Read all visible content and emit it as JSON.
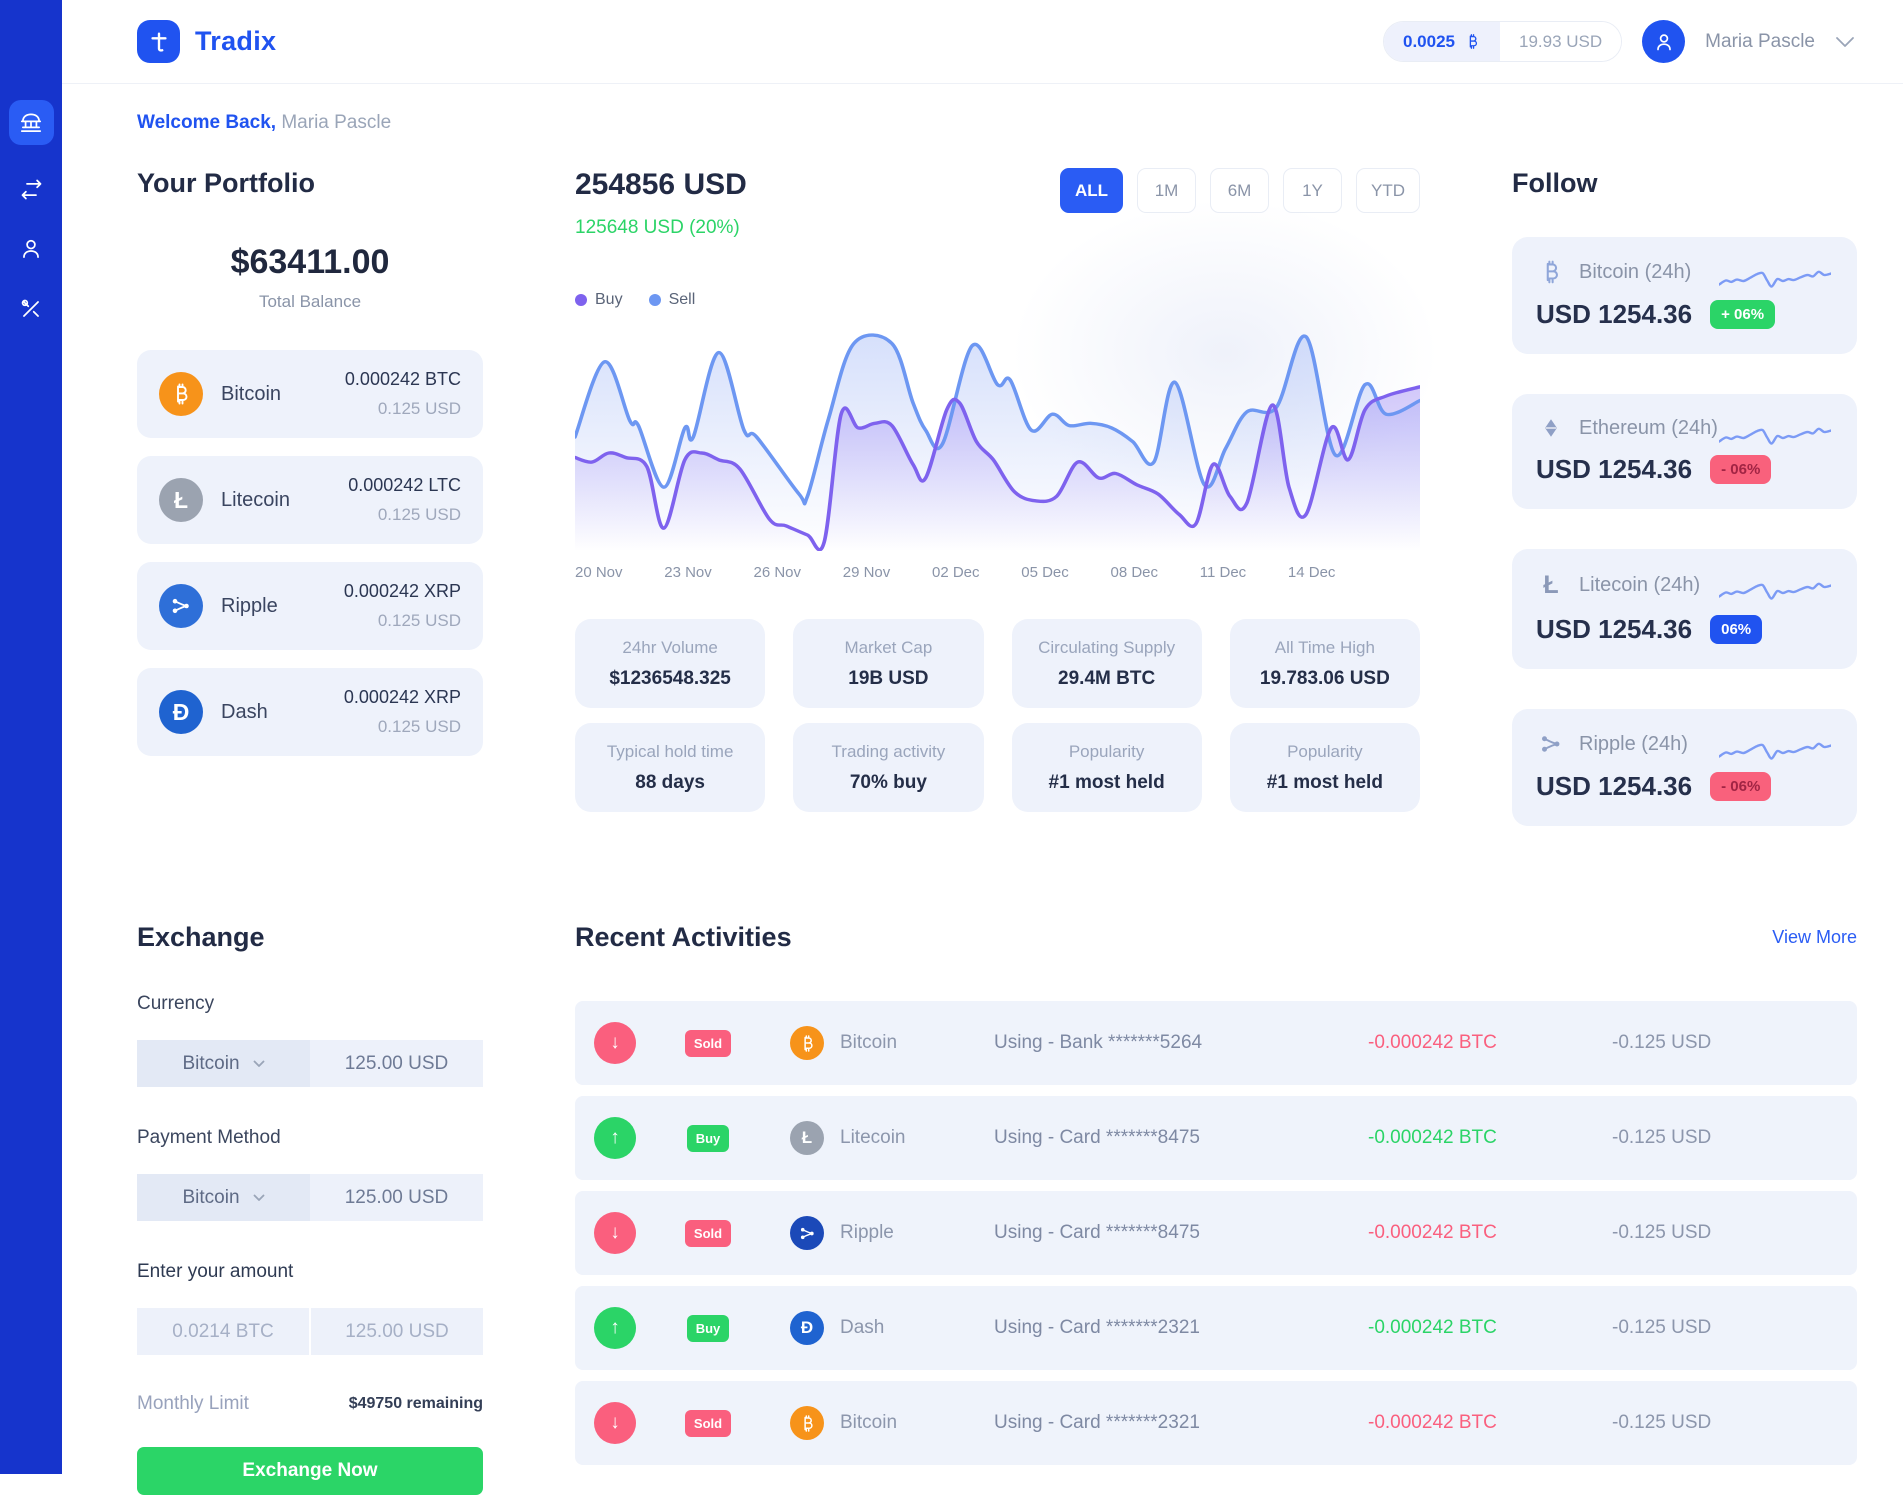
{
  "colors": {
    "brand_blue": "#2053F0",
    "accent_blue": "#2A5CF4",
    "sidebar_blue": "#1634CC",
    "green": "#2BD467",
    "pink": "#FA5F7E",
    "card_bg": "#EEF2FB",
    "line_sell": "#6D97F2",
    "line_buy": "#7E62EE",
    "sparkline": "#7C9BF5",
    "bitcoin": "#F7931A",
    "litecoin": "#9BA3B0",
    "ripple": "#2E6FD8",
    "dash": "#1F63D0"
  },
  "icons": {
    "up_arrow": "↑",
    "down_arrow": "↓",
    "litecoin_glyph": "Ł",
    "dash_glyph": "Đ"
  },
  "header": {
    "brand": "Tradix",
    "rate_crypto": "0.0025",
    "rate_fiat": "19.93 USD",
    "user_name": "Maria Pascle"
  },
  "welcome": {
    "prefix": "Welcome Back,",
    "name": "Maria Pascle"
  },
  "portfolio": {
    "title": "Your Portfolio",
    "total": "$63411.00",
    "total_label": "Total Balance",
    "items": [
      {
        "name": "Bitcoin",
        "amount": "0.000242 BTC",
        "usd": "0.125 USD"
      },
      {
        "name": "Litecoin",
        "amount": "0.000242 LTC",
        "usd": "0.125 USD",
        "glyph": "Ł"
      },
      {
        "name": "Ripple",
        "amount": "0.000242 XRP",
        "usd": "0.125 USD"
      },
      {
        "name": "Dash",
        "amount": "0.000242 XRP",
        "usd": "0.125 USD",
        "glyph": "Đ"
      }
    ]
  },
  "market": {
    "price": "254856 USD",
    "change": "125648 USD (20%)",
    "filters": [
      "ALL",
      "1M",
      "6M",
      "1Y",
      "YTD"
    ],
    "active_filter": "ALL",
    "legend": [
      "Buy",
      "Sell"
    ],
    "stats": [
      {
        "label": "24hr Volume",
        "value": "$1236548.325"
      },
      {
        "label": "Market Cap",
        "value": "19B USD"
      },
      {
        "label": "Circulating Supply",
        "value": "29.4M BTC"
      },
      {
        "label": "All Time High",
        "value": "19.783.06 USD"
      },
      {
        "label": "Typical hold time",
        "value": "88 days"
      },
      {
        "label": "Trading activity",
        "value": "70% buy"
      },
      {
        "label": "Popularity",
        "value": "#1 most held"
      },
      {
        "label": "Popularity",
        "value": "#1 most held"
      }
    ]
  },
  "chart_data": {
    "type": "area",
    "title": "254856 USD",
    "x_labels": [
      "20 Nov",
      "23 Nov",
      "26 Nov",
      "29 Nov",
      "02 Dec",
      "05 Dec",
      "08 Dec",
      "11 Dec",
      "14 Dec"
    ],
    "legend_position": "top-left",
    "grid": false,
    "y_unit": "percent-from-top",
    "series": [
      {
        "name": "Sell",
        "color": "#6D97F2",
        "points": [
          [
            0,
            50
          ],
          [
            3.5,
            17
          ],
          [
            6.5,
            43
          ],
          [
            7.5,
            45
          ],
          [
            10.5,
            72
          ],
          [
            13,
            46
          ],
          [
            14,
            50
          ],
          [
            17,
            13
          ],
          [
            20,
            47
          ],
          [
            21.5,
            50
          ],
          [
            26.5,
            75
          ],
          [
            27.5,
            76
          ],
          [
            30,
            42
          ],
          [
            33,
            9
          ],
          [
            37.5,
            9
          ],
          [
            40,
            35
          ],
          [
            41.5,
            47
          ],
          [
            43.5,
            53
          ],
          [
            47,
            10
          ],
          [
            50,
            27
          ],
          [
            51.5,
            25
          ],
          [
            54,
            47
          ],
          [
            56.5,
            40
          ],
          [
            58.5,
            45
          ],
          [
            61,
            44
          ],
          [
            63.5,
            46
          ],
          [
            66,
            52
          ],
          [
            68.5,
            61
          ],
          [
            71,
            26
          ],
          [
            74.5,
            71
          ],
          [
            77,
            55
          ],
          [
            79.5,
            39
          ],
          [
            83,
            37
          ],
          [
            86.5,
            6
          ],
          [
            90,
            58
          ],
          [
            93.5,
            27
          ],
          [
            96,
            40
          ],
          [
            100,
            34
          ]
        ]
      },
      {
        "name": "Buy",
        "color": "#7E62EE",
        "points": [
          [
            0,
            59
          ],
          [
            2,
            61
          ],
          [
            4,
            57
          ],
          [
            6,
            59
          ],
          [
            8.5,
            63
          ],
          [
            10.5,
            90
          ],
          [
            13,
            60
          ],
          [
            15,
            57
          ],
          [
            17,
            60
          ],
          [
            19.5,
            64
          ],
          [
            23,
            86
          ],
          [
            25,
            89
          ],
          [
            27.5,
            93
          ],
          [
            29.5,
            96
          ],
          [
            31.5,
            40
          ],
          [
            33.5,
            46
          ],
          [
            35.5,
            44
          ],
          [
            37.5,
            45
          ],
          [
            40,
            62
          ],
          [
            41.5,
            68
          ],
          [
            44,
            38
          ],
          [
            45.5,
            35
          ],
          [
            47.5,
            52
          ],
          [
            49.5,
            60
          ],
          [
            52,
            74
          ],
          [
            54.5,
            78
          ],
          [
            57,
            76
          ],
          [
            59.5,
            61
          ],
          [
            62,
            68
          ],
          [
            64,
            66
          ],
          [
            66.5,
            71
          ],
          [
            69,
            75
          ],
          [
            71.5,
            84
          ],
          [
            73.5,
            88
          ],
          [
            75.5,
            62
          ],
          [
            77.5,
            76
          ],
          [
            79.5,
            79
          ],
          [
            82.5,
            36
          ],
          [
            84.5,
            72
          ],
          [
            86.5,
            84
          ],
          [
            89.5,
            46
          ],
          [
            91.5,
            60
          ],
          [
            93.5,
            38
          ],
          [
            96,
            32
          ],
          [
            100,
            28
          ]
        ]
      }
    ],
    "sparkline": {
      "color": "#7C9BF5",
      "points": [
        [
          0,
          34
        ],
        [
          6,
          25
        ],
        [
          11,
          28
        ],
        [
          16,
          23
        ],
        [
          22,
          26
        ],
        [
          28,
          19
        ],
        [
          34,
          11
        ],
        [
          39,
          9
        ],
        [
          43,
          25
        ],
        [
          47,
          38
        ],
        [
          52,
          22
        ],
        [
          57,
          26
        ],
        [
          62,
          22
        ],
        [
          67,
          24
        ],
        [
          73,
          18
        ],
        [
          79,
          13
        ],
        [
          84,
          16
        ],
        [
          89,
          6
        ],
        [
          94,
          13
        ],
        [
          100,
          10
        ]
      ]
    }
  },
  "follow": {
    "title": "Follow",
    "cards": [
      {
        "coin": "Bitcoin (24h)",
        "price": "USD 1254.36",
        "badge": "+ 06%",
        "badge_color": "green"
      },
      {
        "coin": "Ethereum (24h)",
        "price": "USD 1254.36",
        "badge": "- 06%",
        "badge_color": "red"
      },
      {
        "coin": "Litecoin (24h)",
        "price": "USD 1254.36",
        "badge": "06%",
        "badge_color": "blue",
        "glyph": "Ł"
      },
      {
        "coin": "Ripple (24h)",
        "price": "USD 1254.36",
        "badge": "- 06%",
        "badge_color": "red"
      }
    ]
  },
  "exchange": {
    "title": "Exchange",
    "currency_label": "Currency",
    "currency_value": "Bitcoin",
    "currency_amount": "125.00 USD",
    "payment_label": "Payment Method",
    "payment_value": "Bitcoin",
    "payment_amount": "125.00 USD",
    "amount_label": "Enter your amount",
    "amount_crypto_placeholder": "0.0214 BTC",
    "amount_fiat_placeholder": "125.00 USD",
    "limit_label": "Monthly Limit",
    "limit_value": "$49750 remaining",
    "button": "Exchange Now"
  },
  "activities": {
    "title": "Recent Activities",
    "view_more": "View More",
    "rows": [
      {
        "direction": "down",
        "action": "Sold",
        "coin": "Bitcoin",
        "using": "Using - Bank *******5264",
        "btc": "-0.000242 BTC",
        "btc_color": "red",
        "usd": "-0.125 USD"
      },
      {
        "direction": "up",
        "action": "Buy",
        "coin": "Litecoin",
        "using": "Using - Card *******8475",
        "btc": "-0.000242 BTC",
        "btc_color": "green",
        "usd": "-0.125 USD",
        "glyph": "Ł"
      },
      {
        "direction": "down",
        "action": "Sold",
        "coin": "Ripple",
        "using": "Using - Card *******8475",
        "btc": "-0.000242 BTC",
        "btc_color": "red",
        "usd": "-0.125 USD"
      },
      {
        "direction": "up",
        "action": "Buy",
        "coin": "Dash",
        "using": "Using - Card *******2321",
        "btc": "-0.000242 BTC",
        "btc_color": "green",
        "usd": "-0.125 USD",
        "glyph": "Đ"
      },
      {
        "direction": "down",
        "action": "Sold",
        "coin": "Bitcoin",
        "using": "Using - Card *******2321",
        "btc": "-0.000242 BTC",
        "btc_color": "red",
        "usd": "-0.125 USD"
      }
    ]
  }
}
